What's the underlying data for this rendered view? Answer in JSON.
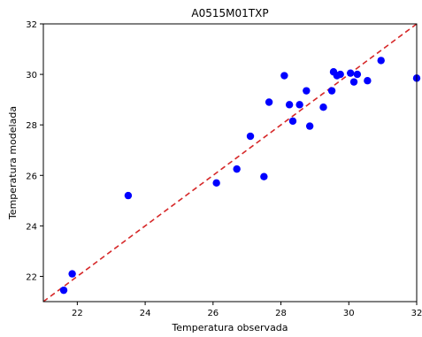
{
  "chart_data": {
    "type": "scatter",
    "title": "A0515M01TXP",
    "xlabel": "Temperatura observada",
    "ylabel": "Temperatura modelada",
    "xlim": [
      21,
      32
    ],
    "ylim": [
      21,
      32
    ],
    "x_ticks": [
      22,
      24,
      26,
      28,
      30,
      32
    ],
    "y_ticks": [
      22,
      24,
      26,
      28,
      30,
      32
    ],
    "grid": false,
    "points": [
      {
        "x": 21.6,
        "y": 21.45
      },
      {
        "x": 21.85,
        "y": 22.1
      },
      {
        "x": 23.5,
        "y": 25.2
      },
      {
        "x": 26.1,
        "y": 25.7
      },
      {
        "x": 26.7,
        "y": 26.25
      },
      {
        "x": 27.1,
        "y": 27.55
      },
      {
        "x": 27.5,
        "y": 25.95
      },
      {
        "x": 27.65,
        "y": 28.9
      },
      {
        "x": 28.1,
        "y": 29.95
      },
      {
        "x": 28.25,
        "y": 28.8
      },
      {
        "x": 28.35,
        "y": 28.15
      },
      {
        "x": 28.55,
        "y": 28.8
      },
      {
        "x": 28.75,
        "y": 29.35
      },
      {
        "x": 28.85,
        "y": 27.95
      },
      {
        "x": 29.25,
        "y": 28.7
      },
      {
        "x": 29.5,
        "y": 29.35
      },
      {
        "x": 29.55,
        "y": 30.1
      },
      {
        "x": 29.65,
        "y": 29.95
      },
      {
        "x": 29.75,
        "y": 30.0
      },
      {
        "x": 30.05,
        "y": 30.05
      },
      {
        "x": 30.15,
        "y": 29.7
      },
      {
        "x": 30.25,
        "y": 30.0
      },
      {
        "x": 30.55,
        "y": 29.75
      },
      {
        "x": 30.95,
        "y": 30.55
      },
      {
        "x": 32.0,
        "y": 29.85
      }
    ],
    "reference_line": {
      "style": "dashed",
      "from": [
        21,
        21
      ],
      "to": [
        32,
        32
      ]
    },
    "colors": {
      "points": "#0000ff",
      "reference_line": "#d62728",
      "axes": "#000000"
    }
  }
}
